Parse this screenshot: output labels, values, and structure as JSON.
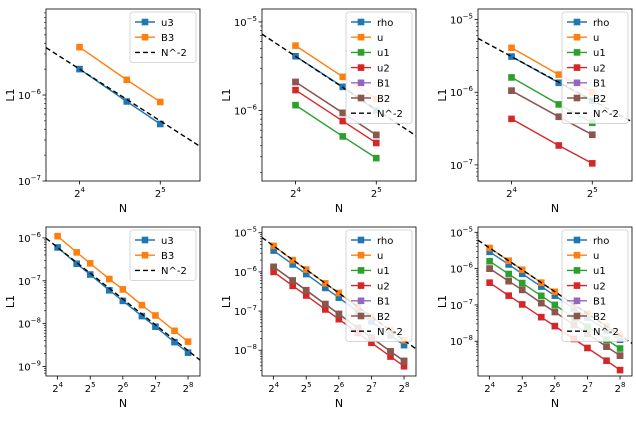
{
  "figure": {
    "rows": 2,
    "cols": 3
  },
  "colors": {
    "rho": "#1f77b4",
    "u": "#ff7f0e",
    "u1": "#2ca02c",
    "u2": "#d62728",
    "B1": "#9467bd",
    "B2": "#8c564b",
    "u3": "#1f77b4",
    "B3": "#ff7f0e",
    "ref": "#000000"
  },
  "chart_data": [
    {
      "type": "line",
      "xscale": "log2",
      "yscale": "log10",
      "title": "",
      "xlabel": "N",
      "ylabel": "L1",
      "xlim": [
        12,
        45
      ],
      "ylim": [
        1e-07,
        1e-05
      ],
      "xticks": [
        {
          "value": 16,
          "base": "2",
          "exp": "4"
        },
        {
          "value": 32,
          "base": "2",
          "exp": "5"
        }
      ],
      "yticks": [
        {
          "value": 1e-07,
          "base": "10",
          "exp": "−7"
        },
        {
          "value": 1e-06,
          "base": "10",
          "exp": "−6"
        }
      ],
      "legend": "upper right",
      "series": [
        {
          "name": "u3",
          "colorKey": "u3",
          "x": [
            16,
            24,
            32
          ],
          "y": [
            2e-06,
            8.4e-07,
            4.6e-07
          ]
        },
        {
          "name": "B3",
          "colorKey": "B3",
          "x": [
            16,
            24,
            32
          ],
          "y": [
            3.6e-06,
            1.5e-06,
            8.3e-07
          ]
        }
      ],
      "reference": {
        "name": "N^-2",
        "anchor_x": 16,
        "anchor_y": 2e-06
      }
    },
    {
      "type": "line",
      "xscale": "log2",
      "yscale": "log10",
      "title": "",
      "xlabel": "N",
      "ylabel": "L1",
      "xlim": [
        12,
        45
      ],
      "ylim": [
        1.6e-07,
        1.4e-05
      ],
      "xticks": [
        {
          "value": 16,
          "base": "2",
          "exp": "4"
        },
        {
          "value": 32,
          "base": "2",
          "exp": "5"
        }
      ],
      "yticks": [
        {
          "value": 1e-06,
          "base": "10",
          "exp": "−6"
        },
        {
          "value": 1e-05,
          "base": "10",
          "exp": "−5"
        }
      ],
      "legend": "upper right",
      "series": [
        {
          "name": "rho",
          "colorKey": "rho",
          "x": [
            16,
            24,
            32
          ],
          "y": [
            4.1e-06,
            1.85e-06,
            1e-06
          ]
        },
        {
          "name": "u",
          "colorKey": "u",
          "x": [
            16,
            24,
            32
          ],
          "y": [
            5.4e-06,
            2.4e-06,
            1.35e-06
          ]
        },
        {
          "name": "u1",
          "colorKey": "u1",
          "x": [
            16,
            24,
            32
          ],
          "y": [
            1.15e-06,
            5.1e-07,
            2.9e-07
          ]
        },
        {
          "name": "u2",
          "colorKey": "u2",
          "x": [
            16,
            24,
            32
          ],
          "y": [
            1.7e-06,
            7.6e-07,
            4.3e-07
          ]
        },
        {
          "name": "B1",
          "colorKey": "B1",
          "x": [
            16,
            24,
            32
          ],
          "y": [
            2.1e-06,
            9.4e-07,
            5.3e-07
          ]
        },
        {
          "name": "B2",
          "colorKey": "B2",
          "x": [
            16,
            24,
            32
          ],
          "y": [
            2.1e-06,
            9.4e-07,
            5.3e-07
          ]
        }
      ],
      "reference": {
        "name": "N^-2",
        "anchor_x": 16,
        "anchor_y": 4.1e-06
      }
    },
    {
      "type": "line",
      "xscale": "log2",
      "yscale": "log10",
      "title": "",
      "xlabel": "N",
      "ylabel": "L1",
      "xlim": [
        12,
        45
      ],
      "ylim": [
        6e-08,
        1.4e-05
      ],
      "xticks": [
        {
          "value": 16,
          "base": "2",
          "exp": "4"
        },
        {
          "value": 32,
          "base": "2",
          "exp": "5"
        }
      ],
      "yticks": [
        {
          "value": 1e-07,
          "base": "10",
          "exp": "−7"
        },
        {
          "value": 1e-06,
          "base": "10",
          "exp": "−6"
        },
        {
          "value": 1e-05,
          "base": "10",
          "exp": "−5"
        }
      ],
      "legend": "upper right",
      "series": [
        {
          "name": "rho",
          "colorKey": "rho",
          "x": [
            16,
            24,
            32
          ],
          "y": [
            3.1e-06,
            1.35e-06,
            7.6e-07
          ]
        },
        {
          "name": "u",
          "colorKey": "u",
          "x": [
            16,
            24,
            32
          ],
          "y": [
            4.1e-06,
            1.75e-06,
            1e-06
          ]
        },
        {
          "name": "u1",
          "colorKey": "u1",
          "x": [
            16,
            24,
            32
          ],
          "y": [
            1.6e-06,
            6.8e-07,
            3.8e-07
          ]
        },
        {
          "name": "u2",
          "colorKey": "u2",
          "x": [
            16,
            24,
            32
          ],
          "y": [
            4.3e-07,
            1.85e-07,
            1.05e-07
          ]
        },
        {
          "name": "B1",
          "colorKey": "B1",
          "x": [
            16,
            24,
            32
          ],
          "y": [
            1.05e-06,
            4.6e-07,
            2.6e-07
          ]
        },
        {
          "name": "B2",
          "colorKey": "B2",
          "x": [
            16,
            24,
            32
          ],
          "y": [
            1.05e-06,
            4.6e-07,
            2.6e-07
          ]
        }
      ],
      "reference": {
        "name": "N^-2",
        "anchor_x": 16,
        "anchor_y": 3.1e-06
      }
    },
    {
      "type": "line",
      "xscale": "log2",
      "yscale": "log10",
      "title": "",
      "xlabel": "N",
      "ylabel": "L1",
      "xlim": [
        12.5,
        330
      ],
      "ylim": [
        6e-10,
        1.8e-06
      ],
      "xticks": [
        {
          "value": 16,
          "base": "2",
          "exp": "4"
        },
        {
          "value": 32,
          "base": "2",
          "exp": "5"
        },
        {
          "value": 64,
          "base": "2",
          "exp": "6"
        },
        {
          "value": 128,
          "base": "2",
          "exp": "7"
        },
        {
          "value": 256,
          "base": "2",
          "exp": "8"
        }
      ],
      "yticks": [
        {
          "value": 1e-09,
          "base": "10",
          "exp": "−9"
        },
        {
          "value": 1e-08,
          "base": "10",
          "exp": "−8"
        },
        {
          "value": 1e-07,
          "base": "10",
          "exp": "−7"
        },
        {
          "value": 1e-06,
          "base": "10",
          "exp": "−6"
        }
      ],
      "legend": "upper right",
      "series": [
        {
          "name": "u3",
          "colorKey": "u3",
          "x": [
            16,
            24,
            32,
            48,
            64,
            96,
            128,
            192,
            256
          ],
          "y": [
            6e-07,
            2.5e-07,
            1.4e-07,
            6e-08,
            3.4e-08,
            1.5e-08,
            8.5e-09,
            3.7e-09,
            2.1e-09
          ]
        },
        {
          "name": "B3",
          "colorKey": "B3",
          "x": [
            16,
            24,
            32,
            48,
            64,
            96,
            128,
            192,
            256
          ],
          "y": [
            1.1e-06,
            4.6e-07,
            2.55e-07,
            1.1e-07,
            6.3e-08,
            2.7e-08,
            1.55e-08,
            6.8e-09,
            3.8e-09
          ]
        }
      ],
      "reference": {
        "name": "N^-2",
        "anchor_x": 16,
        "anchor_y": 6e-07
      }
    },
    {
      "type": "line",
      "xscale": "log2",
      "yscale": "log10",
      "title": "",
      "xlabel": "N",
      "ylabel": "L1",
      "xlim": [
        12.5,
        330
      ],
      "ylim": [
        2.2e-09,
        1.4e-05
      ],
      "xticks": [
        {
          "value": 16,
          "base": "2",
          "exp": "4"
        },
        {
          "value": 32,
          "base": "2",
          "exp": "5"
        },
        {
          "value": 64,
          "base": "2",
          "exp": "6"
        },
        {
          "value": 128,
          "base": "2",
          "exp": "7"
        },
        {
          "value": 256,
          "base": "2",
          "exp": "8"
        }
      ],
      "yticks": [
        {
          "value": 1e-08,
          "base": "10",
          "exp": "−8"
        },
        {
          "value": 1e-07,
          "base": "10",
          "exp": "−7"
        },
        {
          "value": 1e-06,
          "base": "10",
          "exp": "−6"
        },
        {
          "value": 1e-05,
          "base": "10",
          "exp": "−5"
        }
      ],
      "legend": "upper right",
      "series": [
        {
          "name": "rho",
          "colorKey": "rho",
          "x": [
            16,
            24,
            32,
            48,
            64,
            96,
            128,
            192,
            256
          ],
          "y": [
            3.5e-06,
            1.55e-06,
            8.8e-07,
            3.9e-07,
            2.2e-07,
            9.6e-08,
            5.4e-08,
            2.4e-08,
            1.35e-08
          ]
        },
        {
          "name": "u",
          "colorKey": "u",
          "x": [
            16,
            24,
            32,
            48,
            64,
            96,
            128,
            192,
            256
          ],
          "y": [
            4.6e-06,
            2e-06,
            1.15e-06,
            5.1e-07,
            2.9e-07,
            1.27e-07,
            7.2e-08,
            3.2e-08,
            1.8e-08
          ]
        },
        {
          "name": "u1",
          "colorKey": "u1",
          "x": [
            16,
            24,
            32,
            48,
            64,
            96,
            128,
            192,
            256
          ],
          "y": [
            1.35e-06,
            6e-07,
            3.4e-07,
            1.5e-07,
            8.4e-08,
            3.7e-08,
            2.1e-08,
            9.3e-09,
            5.3e-09
          ]
        },
        {
          "name": "u2",
          "colorKey": "u2",
          "x": [
            16,
            24,
            32,
            48,
            64,
            96,
            128,
            192,
            256
          ],
          "y": [
            1e-06,
            4.4e-07,
            2.5e-07,
            1.1e-07,
            6.2e-08,
            2.75e-08,
            1.55e-08,
            6.9e-09,
            3.9e-09
          ]
        },
        {
          "name": "B1",
          "colorKey": "B1",
          "x": [
            16,
            24,
            32,
            48,
            64,
            96,
            128,
            192,
            256
          ],
          "y": [
            1.35e-06,
            6e-07,
            3.4e-07,
            1.5e-07,
            8.4e-08,
            3.7e-08,
            2.1e-08,
            9.3e-09,
            5.3e-09
          ]
        },
        {
          "name": "B2",
          "colorKey": "B2",
          "x": [
            16,
            24,
            32,
            48,
            64,
            96,
            128,
            192,
            256
          ],
          "y": [
            1.35e-06,
            6e-07,
            3.4e-07,
            1.5e-07,
            8.4e-08,
            3.7e-08,
            2.1e-08,
            9.3e-09,
            5.3e-09
          ]
        }
      ],
      "reference": {
        "name": "N^-2",
        "anchor_x": 16,
        "anchor_y": 4.6e-06
      }
    },
    {
      "type": "line",
      "xscale": "log2",
      "yscale": "log10",
      "title": "",
      "xlabel": "N",
      "ylabel": "L1",
      "xlim": [
        12.5,
        330
      ],
      "ylim": [
        1.1e-09,
        1.4e-05
      ],
      "xticks": [
        {
          "value": 16,
          "base": "2",
          "exp": "4"
        },
        {
          "value": 32,
          "base": "2",
          "exp": "5"
        },
        {
          "value": 64,
          "base": "2",
          "exp": "6"
        },
        {
          "value": 128,
          "base": "2",
          "exp": "7"
        },
        {
          "value": 256,
          "base": "2",
          "exp": "8"
        }
      ],
      "yticks": [
        {
          "value": 1e-08,
          "base": "10",
          "exp": "−8"
        },
        {
          "value": 1e-07,
          "base": "10",
          "exp": "−7"
        },
        {
          "value": 1e-06,
          "base": "10",
          "exp": "−6"
        },
        {
          "value": 1e-05,
          "base": "10",
          "exp": "−5"
        }
      ],
      "legend": "upper right",
      "series": [
        {
          "name": "rho",
          "colorKey": "rho",
          "x": [
            16,
            24,
            32,
            48,
            64,
            96,
            128,
            192,
            256
          ],
          "y": [
            2.9e-06,
            1.3e-06,
            7.2e-07,
            3.2e-07,
            1.8e-07,
            8e-08,
            4.5e-08,
            2e-08,
            1.1e-08
          ]
        },
        {
          "name": "u",
          "colorKey": "u",
          "x": [
            16,
            24,
            32,
            48,
            64,
            96,
            128,
            192,
            256
          ],
          "y": [
            3.7e-06,
            1.65e-06,
            9.3e-07,
            4.1e-07,
            2.3e-07,
            1.03e-07,
            5.8e-08,
            2.6e-08,
            1.45e-08
          ]
        },
        {
          "name": "u1",
          "colorKey": "u1",
          "x": [
            16,
            24,
            32,
            48,
            64,
            96,
            128,
            192,
            256
          ],
          "y": [
            1.6e-06,
            7.1e-07,
            4e-07,
            1.78e-07,
            1e-07,
            4.4e-08,
            2.5e-08,
            1.1e-08,
            6.3e-09
          ]
        },
        {
          "name": "u2",
          "colorKey": "u2",
          "x": [
            16,
            24,
            32,
            48,
            64,
            96,
            128,
            192,
            256
          ],
          "y": [
            4.1e-07,
            1.8e-07,
            1.03e-07,
            4.6e-08,
            2.6e-08,
            1.15e-08,
            6.5e-09,
            2.9e-09,
            1.6e-09
          ]
        },
        {
          "name": "B1",
          "colorKey": "B1",
          "x": [
            16,
            24,
            32,
            48,
            64,
            96,
            128,
            192,
            256
          ],
          "y": [
            1e-06,
            4.5e-07,
            2.6e-07,
            1.12e-07,
            6.4e-08,
            2.8e-08,
            1.6e-08,
            7.1e-09,
            4e-09
          ]
        },
        {
          "name": "B2",
          "colorKey": "B2",
          "x": [
            16,
            24,
            32,
            48,
            64,
            96,
            128,
            192,
            256
          ],
          "y": [
            1e-06,
            4.5e-07,
            2.6e-07,
            1.12e-07,
            6.4e-08,
            2.8e-08,
            1.6e-08,
            7.1e-09,
            4e-09
          ]
        }
      ],
      "reference": {
        "name": "N^-2",
        "anchor_x": 16,
        "anchor_y": 3.7e-06
      }
    }
  ]
}
